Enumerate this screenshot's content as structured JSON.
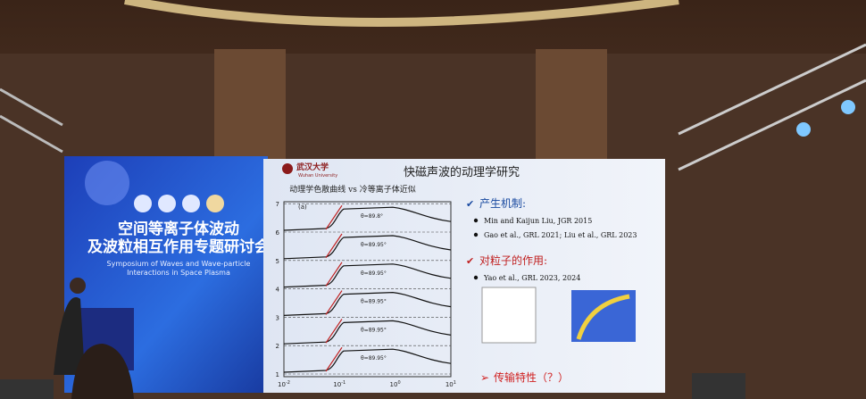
{
  "banner": {
    "title_line1": "空间等离子体波动",
    "title_line2": "及波粒相互作用专题研讨会",
    "subtitle_line1": "Symposium of Waves and Wave-particle",
    "subtitle_line2": "Interactions in Space Plasma"
  },
  "slide": {
    "logo_cn": "武汉大学",
    "logo_en": "Wuhan University",
    "title": "快磁声波的动理学研究",
    "plot": {
      "caption": "动理学色散曲线 vs 冷等离子体近似",
      "panel": "(a)",
      "yticks": [
        "1",
        "2",
        "3",
        "4",
        "5",
        "6",
        "7"
      ],
      "xticks": [
        {
          "base": "10",
          "exp": "-2"
        },
        {
          "base": "10",
          "exp": "-1"
        },
        {
          "base": "10",
          "exp": "0"
        },
        {
          "base": "10",
          "exp": "1"
        }
      ],
      "curve_labels": [
        "θ=89.95°",
        "θ=89.95°",
        "θ=89.95°",
        "θ=89.95°",
        "θ=89.95°",
        "θ=89.8°"
      ]
    },
    "sections": [
      {
        "heading": "产生机制:",
        "items": [
          "Min and Kaijun Liu, JGR 2015",
          "Gao et al., GRL 2021; Liu et al., GRL 2023"
        ]
      },
      {
        "heading": "对粒子的作用:",
        "items": [
          "Yao et al., GRL 2023, 2024"
        ]
      }
    ],
    "bottom": "传输特性（？）"
  }
}
